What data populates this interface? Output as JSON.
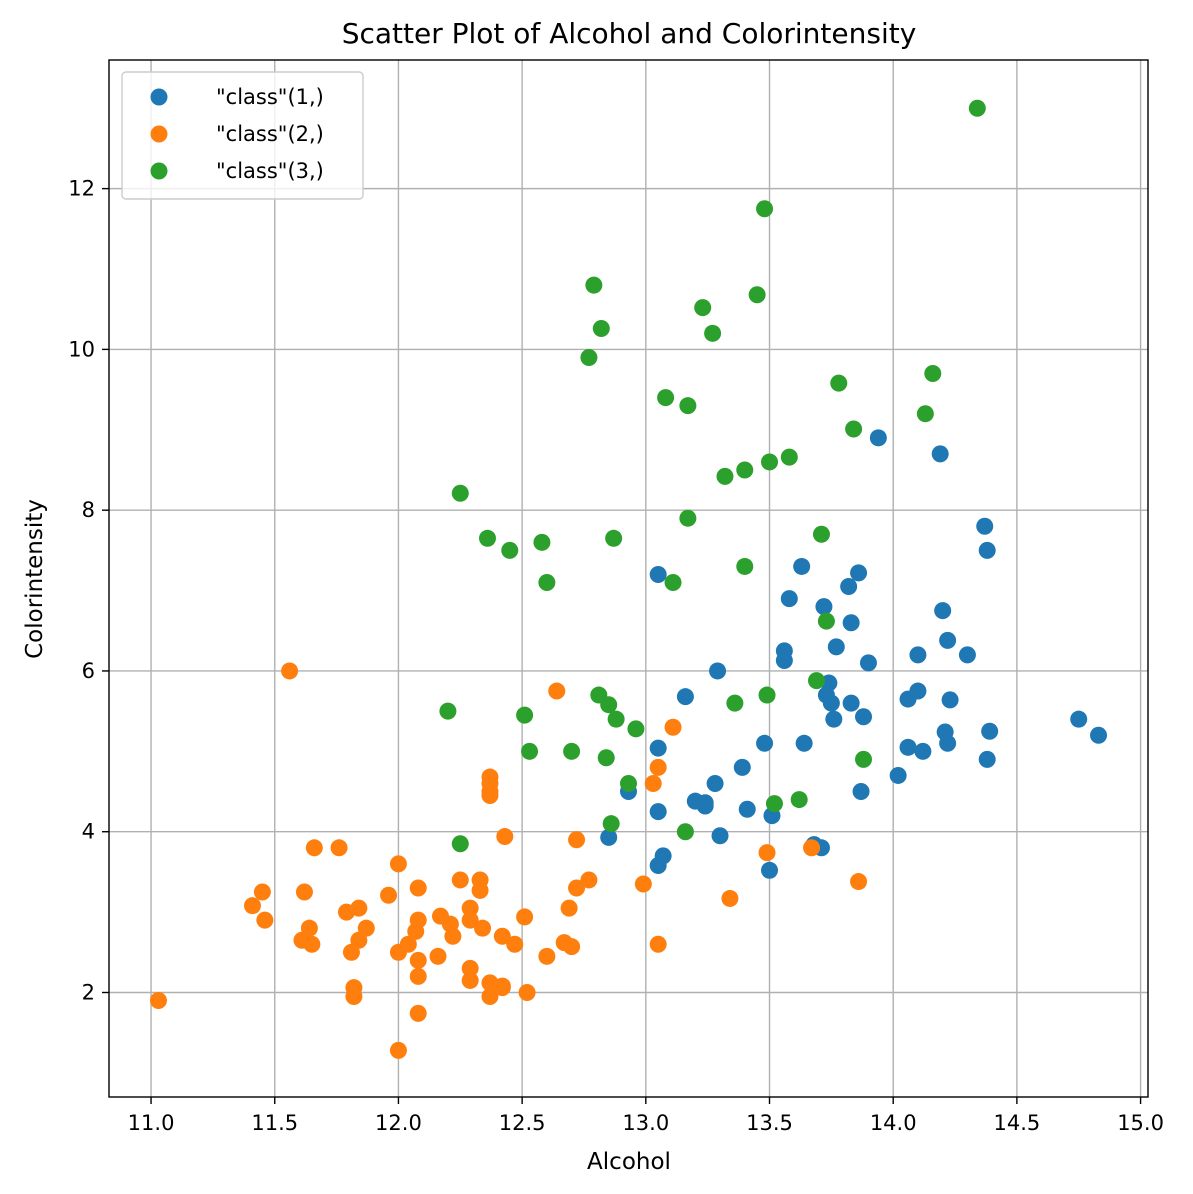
{
  "chart_data": {
    "type": "scatter",
    "title": "Scatter Plot of Alcohol and Colorintensity",
    "xlabel": "Alcohol",
    "ylabel": "Colorintensity",
    "xlim": [
      10.83,
      15.03
    ],
    "ylim": [
      0.7,
      13.6
    ],
    "xticks": [
      11.0,
      11.5,
      12.0,
      12.5,
      13.0,
      13.5,
      14.0,
      14.5,
      15.0
    ],
    "xtick_labels": [
      "11.0",
      "11.5",
      "12.0",
      "12.5",
      "13.0",
      "13.5",
      "14.0",
      "14.5",
      "15.0"
    ],
    "yticks": [
      2,
      4,
      6,
      8,
      10,
      12
    ],
    "ytick_labels": [
      "2",
      "4",
      "6",
      "8",
      "10",
      "12"
    ],
    "grid": true,
    "legend_position": "top-left",
    "series": [
      {
        "name": "\"class\"(1,)",
        "color": "#1f77b4",
        "points": [
          [
            14.23,
            5.64
          ],
          [
            13.2,
            4.38
          ],
          [
            13.16,
            5.68
          ],
          [
            14.37,
            7.8
          ],
          [
            13.24,
            4.32
          ],
          [
            14.2,
            6.75
          ],
          [
            14.39,
            5.25
          ],
          [
            14.06,
            5.05
          ],
          [
            14.83,
            5.2
          ],
          [
            13.86,
            7.22
          ],
          [
            14.1,
            5.75
          ],
          [
            14.12,
            5.0
          ],
          [
            13.75,
            5.6
          ],
          [
            14.75,
            5.4
          ],
          [
            14.38,
            7.5
          ],
          [
            13.63,
            7.3
          ],
          [
            14.3,
            6.2
          ],
          [
            13.83,
            6.6
          ],
          [
            14.19,
            8.7
          ],
          [
            13.64,
            5.1
          ],
          [
            14.06,
            5.65
          ],
          [
            12.93,
            4.5
          ],
          [
            13.71,
            3.8
          ],
          [
            12.85,
            3.93
          ],
          [
            13.5,
            3.52
          ],
          [
            13.05,
            3.58
          ],
          [
            13.39,
            4.8
          ],
          [
            13.3,
            3.95
          ],
          [
            13.87,
            4.5
          ],
          [
            14.02,
            4.7
          ],
          [
            13.73,
            5.7
          ],
          [
            13.58,
            6.9
          ],
          [
            13.68,
            3.84
          ],
          [
            13.76,
            5.4
          ],
          [
            13.51,
            4.2
          ],
          [
            13.48,
            5.1
          ],
          [
            13.28,
            4.6
          ],
          [
            13.05,
            4.25
          ],
          [
            13.07,
            3.7
          ],
          [
            14.22,
            5.1
          ],
          [
            13.56,
            6.13
          ],
          [
            13.41,
            4.28
          ],
          [
            13.88,
            5.43
          ],
          [
            13.24,
            4.36
          ],
          [
            13.05,
            5.04
          ],
          [
            14.21,
            5.24
          ],
          [
            14.38,
            4.9
          ],
          [
            13.9,
            6.1
          ],
          [
            14.1,
            6.2
          ],
          [
            13.94,
            8.9
          ],
          [
            13.05,
            7.2
          ],
          [
            13.83,
            5.6
          ],
          [
            13.82,
            7.05
          ],
          [
            13.77,
            6.3
          ],
          [
            13.74,
            5.85
          ],
          [
            13.56,
            6.25
          ],
          [
            14.22,
            6.38
          ],
          [
            13.29,
            6.0
          ],
          [
            13.72,
            6.8
          ]
        ]
      },
      {
        "name": "\"class\"(2,)",
        "color": "#ff7f0e",
        "points": [
          [
            12.37,
            1.95
          ],
          [
            12.33,
            3.27
          ],
          [
            12.64,
            5.75
          ],
          [
            13.67,
            3.8
          ],
          [
            12.37,
            4.45
          ],
          [
            12.17,
            2.95
          ],
          [
            12.37,
            4.6
          ],
          [
            13.11,
            5.3
          ],
          [
            12.37,
            4.68
          ],
          [
            13.34,
            3.17
          ],
          [
            12.21,
            2.85
          ],
          [
            12.29,
            3.05
          ],
          [
            13.86,
            3.38
          ],
          [
            13.49,
            3.74
          ],
          [
            12.99,
            3.35
          ],
          [
            11.96,
            3.21
          ],
          [
            11.66,
            3.8
          ],
          [
            13.03,
            4.6
          ],
          [
            11.84,
            2.65
          ],
          [
            12.33,
            3.4
          ],
          [
            12.7,
            2.57
          ],
          [
            12.0,
            2.5
          ],
          [
            12.72,
            3.9
          ],
          [
            12.08,
            2.2
          ],
          [
            13.05,
            4.8
          ],
          [
            11.84,
            3.05
          ],
          [
            12.67,
            2.62
          ],
          [
            12.16,
            2.45
          ],
          [
            11.65,
            2.6
          ],
          [
            11.64,
            2.8
          ],
          [
            12.08,
            1.74
          ],
          [
            12.08,
            2.4
          ],
          [
            12.0,
            3.6
          ],
          [
            12.69,
            3.05
          ],
          [
            12.29,
            2.15
          ],
          [
            11.62,
            3.25
          ],
          [
            12.47,
            2.6
          ],
          [
            11.81,
            2.5
          ],
          [
            12.29,
            2.9
          ],
          [
            12.37,
            4.5
          ],
          [
            12.29,
            2.3
          ],
          [
            12.08,
            3.3
          ],
          [
            12.6,
            2.45
          ],
          [
            12.34,
            2.8
          ],
          [
            11.82,
            2.06
          ],
          [
            12.51,
            2.94
          ],
          [
            12.42,
            2.7
          ],
          [
            12.25,
            3.4
          ],
          [
            12.72,
            3.3
          ],
          [
            12.22,
            2.7
          ],
          [
            11.61,
            2.65
          ],
          [
            11.46,
            2.9
          ],
          [
            12.52,
            2.0
          ],
          [
            11.76,
            3.8
          ],
          [
            11.41,
            3.08
          ],
          [
            12.08,
            2.9
          ],
          [
            11.03,
            1.9
          ],
          [
            11.82,
            1.95
          ],
          [
            12.42,
            2.06
          ],
          [
            12.77,
            3.4
          ],
          [
            12.0,
            1.28
          ],
          [
            11.45,
            3.25
          ],
          [
            11.56,
            6.0
          ],
          [
            12.42,
            2.08
          ],
          [
            13.05,
            2.6
          ],
          [
            11.87,
            2.8
          ],
          [
            12.07,
            2.76
          ],
          [
            12.43,
            3.94
          ],
          [
            11.79,
            3.0
          ],
          [
            12.37,
            2.12
          ],
          [
            12.04,
            2.6
          ]
        ]
      },
      {
        "name": "\"class\"(3,)",
        "color": "#2ca02c",
        "points": [
          [
            12.86,
            4.1
          ],
          [
            12.88,
            5.4
          ],
          [
            12.81,
            5.7
          ],
          [
            12.7,
            5.0
          ],
          [
            12.51,
            5.45
          ],
          [
            12.6,
            7.1
          ],
          [
            12.25,
            3.85
          ],
          [
            12.53,
            5.0
          ],
          [
            13.49,
            5.7
          ],
          [
            12.84,
            4.92
          ],
          [
            12.93,
            4.6
          ],
          [
            13.36,
            5.6
          ],
          [
            13.52,
            4.35
          ],
          [
            13.62,
            4.4
          ],
          [
            12.25,
            8.21
          ],
          [
            13.16,
            4.0
          ],
          [
            13.88,
            4.9
          ],
          [
            12.87,
            7.65
          ],
          [
            13.32,
            8.42
          ],
          [
            13.08,
            9.4
          ],
          [
            13.5,
            8.6
          ],
          [
            12.79,
            10.8
          ],
          [
            13.11,
            7.1
          ],
          [
            13.23,
            10.52
          ],
          [
            12.58,
            7.6
          ],
          [
            13.17,
            7.9
          ],
          [
            13.84,
            9.01
          ],
          [
            12.45,
            7.5
          ],
          [
            14.34,
            13.0
          ],
          [
            13.48,
            11.75
          ],
          [
            12.36,
            7.65
          ],
          [
            13.69,
            5.88
          ],
          [
            12.85,
            5.58
          ],
          [
            12.96,
            5.28
          ],
          [
            13.78,
            9.58
          ],
          [
            13.73,
            6.62
          ],
          [
            13.45,
            10.68
          ],
          [
            12.82,
            10.26
          ],
          [
            13.58,
            8.66
          ],
          [
            13.4,
            8.5
          ],
          [
            12.2,
            5.5
          ],
          [
            12.77,
            9.899
          ],
          [
            14.16,
            9.7
          ],
          [
            13.71,
            7.7
          ],
          [
            13.4,
            7.3
          ],
          [
            13.27,
            10.2
          ],
          [
            13.17,
            9.3
          ],
          [
            14.13,
            9.2
          ]
        ]
      }
    ]
  }
}
